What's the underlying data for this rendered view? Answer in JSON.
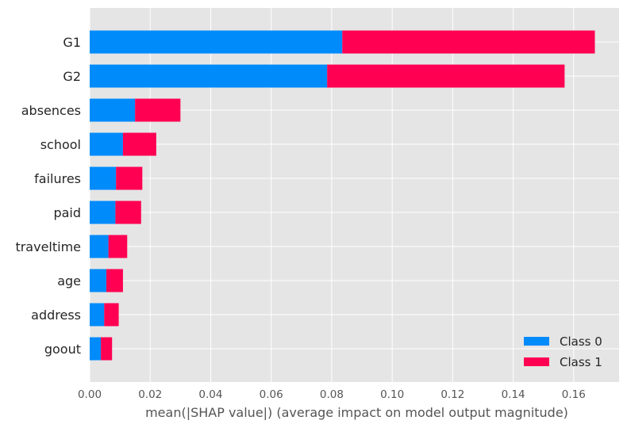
{
  "chart_data": {
    "type": "bar",
    "stacked": true,
    "orientation": "horizontal",
    "categories": [
      "G1",
      "G2",
      "absences",
      "school",
      "failures",
      "paid",
      "traveltime",
      "age",
      "address",
      "goout"
    ],
    "series": [
      {
        "name": "Class 0",
        "color": "#008bfb",
        "values": [
          0.0835,
          0.0785,
          0.015,
          0.011,
          0.0087,
          0.0085,
          0.0062,
          0.0055,
          0.0048,
          0.0037
        ]
      },
      {
        "name": "Class 1",
        "color": "#ff0052",
        "values": [
          0.0835,
          0.0785,
          0.015,
          0.011,
          0.0087,
          0.0085,
          0.0062,
          0.0055,
          0.0048,
          0.0037
        ]
      }
    ],
    "xlabel": "mean(|SHAP value|) (average impact on model output magnitude)",
    "ylabel": "",
    "xlim": [
      0,
      0.175
    ],
    "xticks": [
      "0.00",
      "0.02",
      "0.04",
      "0.06",
      "0.08",
      "0.10",
      "0.12",
      "0.14",
      "0.16"
    ],
    "grid": true,
    "legend_position": "lower-right",
    "background_color": "#e5e5e5"
  }
}
